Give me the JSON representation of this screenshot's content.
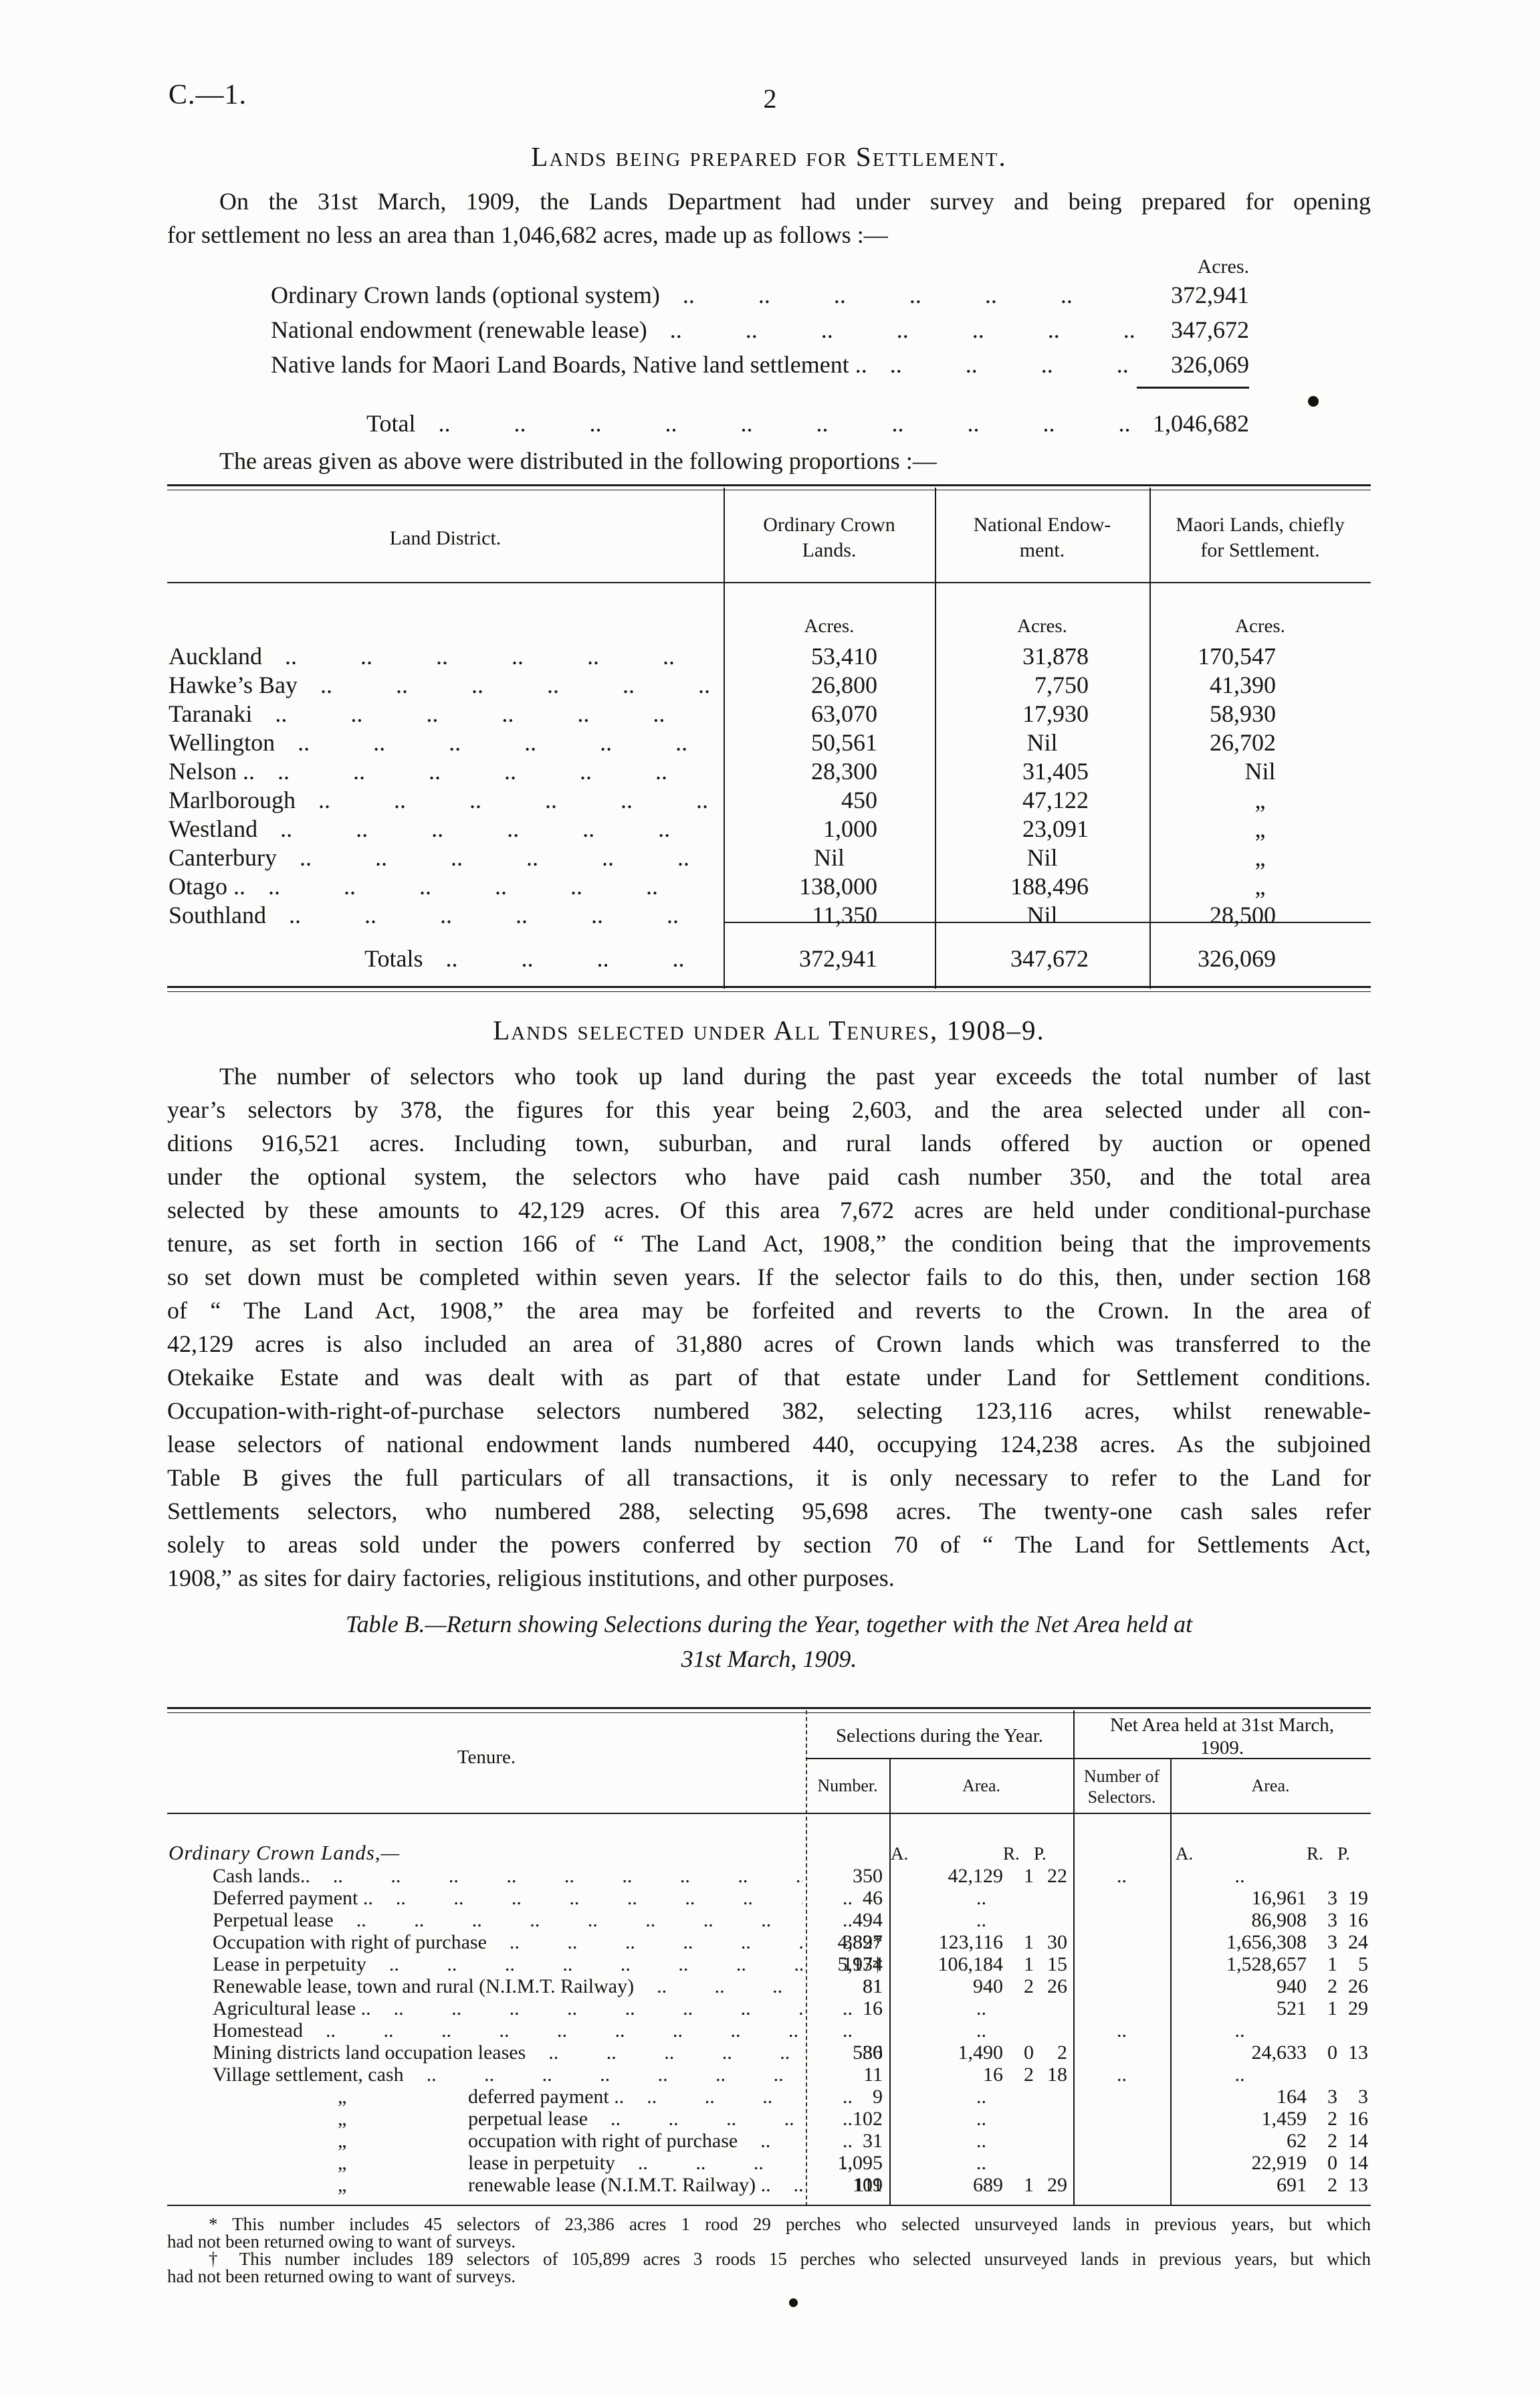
{
  "page": {
    "doc_ref": "C.—1.",
    "page_number": "2"
  },
  "section1": {
    "heading": "Lands being prepared for Settlement.",
    "para_lines": [
      "On the 31st March, 1909, the Lands Department had under survey and being prepared for opening",
      "for settlement no less an area than 1,046,682 acres, made up as follows :—"
    ],
    "acres_label": "Acres.",
    "items": [
      {
        "label": "Ordinary Crown lands (optional system)",
        "value": "372,941"
      },
      {
        "label": "National endowment (renewable lease)",
        "value": "347,672"
      },
      {
        "label": "Native lands for Maori Land Boards, Native land settlement ..",
        "value": "326,069"
      }
    ],
    "total_label": "Total",
    "total_value": "1,046,682",
    "intro_line": "The areas given as above were distributed in the following proportions :—"
  },
  "table1": {
    "col_land_district": "Land District.",
    "col_ocl": [
      "Ordinary Crown",
      "Lands."
    ],
    "col_ne": [
      "National Endow-",
      "ment."
    ],
    "col_maori": [
      "Maori Lands, chiefly",
      "for Settlement."
    ],
    "units": [
      "Acres.",
      "Acres.",
      "Acres."
    ],
    "rows": [
      {
        "district": "Auckland",
        "ocl": "53,410",
        "ne": "31,878",
        "maori": "170,547"
      },
      {
        "district": "Hawke’s Bay",
        "ocl": "26,800",
        "ne": "7,750",
        "maori": "41,390"
      },
      {
        "district": "Taranaki",
        "ocl": "63,070",
        "ne": "17,930",
        "maori": "58,930"
      },
      {
        "district": "Wellington",
        "ocl": "50,561",
        "ne": "Nil",
        "maori": "26,702"
      },
      {
        "district": "Nelson ..",
        "ocl": "28,300",
        "ne": "31,405",
        "maori": "Nil"
      },
      {
        "district": "Marlborough",
        "ocl": "450",
        "ne": "47,122",
        "maori": "„"
      },
      {
        "district": "Westland",
        "ocl": "1,000",
        "ne": "23,091",
        "maori": "„"
      },
      {
        "district": "Canterbury",
        "ocl": "Nil",
        "ne": "Nil",
        "maori": "„"
      },
      {
        "district": "Otago ..",
        "ocl": "138,000",
        "ne": "188,496",
        "maori": "„"
      },
      {
        "district": "Southland",
        "ocl": "11,350",
        "ne": "Nil",
        "maori": "28,500"
      }
    ],
    "totals": {
      "label": "Totals",
      "ocl": "372,941",
      "ne": "347,672",
      "maori": "326,069"
    }
  },
  "section2": {
    "heading": "Lands selected under All Tenures, 1908–9.",
    "para_lines": [
      "The number of selectors who took up land during the past year exceeds the total number of last",
      "year’s selectors by 378, the figures for this year being 2,603, and the area selected under all con-",
      "ditions 916,521 acres.  Including town, suburban, and rural lands offered by auction or opened",
      "under the optional system, the selectors who have paid cash number 350, and the total area",
      "selected by these amounts to 42,129 acres.  Of this area 7,672 acres are held under conditional-purchase",
      "tenure, as set forth in section 166 of “ The Land Act, 1908,” the condition being that the improvements",
      "so set down must be completed within seven years.  If the selector fails to do this, then, under section 168",
      "of “ The Land Act, 1908,” the area may be forfeited and reverts to the Crown.  In the area of",
      "42,129 acres is also included an area of 31,880 acres of Crown lands which was transferred to the",
      "Otekaike Estate and was dealt with as part of that estate under Land for Settlement conditions.",
      "Occupation-with-right-of-purchase selectors numbered 382, selecting 123,116 acres, whilst renewable-",
      "lease selectors of national endowment lands numbered 440, occupying 124,238 acres.  As the subjoined",
      "Table B gives the full particulars of all transactions, it is only necessary to refer to the Land for",
      "Settlements selectors, who numbered 288, selecting 95,698 acres.  The twenty-one cash sales refer",
      "solely to areas sold under the powers conferred by section 70 of “ The Land for Settlements Act,",
      "1908,” as sites for dairy factories, religious institutions, and other purposes."
    ]
  },
  "tableB": {
    "title_lines": [
      "Table B.—Return showing Selections during the Year, together with the Net Area held at",
      "31st March, 1909."
    ],
    "headers": {
      "tenure": "Tenure.",
      "selections_group": "Selections during the Year.",
      "net_group_lines": [
        "Net Area held at 31st March,",
        "1909."
      ],
      "number": "Number.",
      "area": "Area.",
      "num_selectors_lines": [
        "Number of",
        "Selectors."
      ],
      "area2": "Area."
    },
    "units": {
      "a": "A.",
      "r": "R.",
      "p": "P."
    },
    "section_row": "Ordinary Crown Lands,—",
    "rows": [
      {
        "label": "Cash lands..",
        "ditto": false,
        "num": "350",
        "a": "42,129",
        "r": "1",
        "p": "22",
        "ns": "..",
        "na": "..",
        "nr": "",
        "np": ""
      },
      {
        "label": "Deferred payment ..",
        "ditto": false,
        "num": "..",
        "a": "..",
        "r": "",
        "p": "",
        "ns": "46",
        "na": "16,961",
        "nr": "3",
        "np": "19"
      },
      {
        "label": "Perpetual lease",
        "ditto": false,
        "num": "..",
        "a": "..",
        "r": "",
        "p": "",
        "ns": "494",
        "na": "86,908",
        "nr": "3",
        "np": "16"
      },
      {
        "label": "Occupation with right of purchase",
        "ditto": false,
        "num": "382*",
        "a": "123,116",
        "r": "1",
        "p": "30",
        "ns": "4,897",
        "na": "1,656,308",
        "nr": "3",
        "np": "24"
      },
      {
        "label": "Lease in perpetuity",
        "ditto": false,
        "num": "193†",
        "a": "106,184",
        "r": "1",
        "p": "15",
        "ns": "5,174",
        "na": "1,528,657",
        "nr": "1",
        "np": "5"
      },
      {
        "label": "Renewable lease, town and rural (N.I.M.T. Railway)",
        "ditto": false,
        "num": "81",
        "a": "940",
        "r": "2",
        "p": "26",
        "ns": "81",
        "na": "940",
        "nr": "2",
        "np": "26"
      },
      {
        "label": "Agricultural lease ..",
        "ditto": false,
        "num": "..",
        "a": "..",
        "r": "",
        "p": "",
        "ns": "16",
        "na": "521",
        "nr": "1",
        "np": "29"
      },
      {
        "label": "Homestead",
        "ditto": false,
        "num": "..",
        "a": "..",
        "r": "",
        "p": "",
        "ns": "..",
        "na": "..",
        "nr": "",
        "np": ""
      },
      {
        "label": "Mining districts land occupation leases",
        "ditto": false,
        "num": "36",
        "a": "1,490",
        "r": "0",
        "p": "2",
        "ns": "580",
        "na": "24,633",
        "nr": "0",
        "np": "13"
      },
      {
        "label": "Village settlement, cash",
        "ditto": false,
        "num": "11",
        "a": "16",
        "r": "2",
        "p": "18",
        "ns": "..",
        "na": "..",
        "nr": "",
        "np": ""
      },
      {
        "label": "deferred payment ..",
        "ditto": true,
        "num": "..",
        "a": "..",
        "r": "",
        "p": "",
        "ns": "9",
        "na": "164",
        "nr": "3",
        "np": "3"
      },
      {
        "label": "perpetual lease",
        "ditto": true,
        "num": "..",
        "a": "..",
        "r": "",
        "p": "",
        "ns": "102",
        "na": "1,459",
        "nr": "2",
        "np": "16"
      },
      {
        "label": "occupation with right of purchase",
        "ditto": true,
        "num": "..",
        "a": "..",
        "r": "",
        "p": "",
        "ns": "31",
        "na": "62",
        "nr": "2",
        "np": "14"
      },
      {
        "label": "lease in perpetuity",
        "ditto": true,
        "num": "..",
        "a": "..",
        "r": "",
        "p": "",
        "ns": "1,095",
        "na": "22,919",
        "nr": "0",
        "np": "14"
      },
      {
        "label": "renewable lease (N.I.M.T. Railway) ..",
        "ditto": true,
        "num": "109",
        "a": "689",
        "r": "1",
        "p": "29",
        "ns": "111",
        "na": "691",
        "nr": "2",
        "np": "13"
      }
    ]
  },
  "footnotes": {
    "fn1_lines": [
      "* This number includes 45 selectors of 23,386 acres 1 rood 29 perches who selected unsurveyed lands in previous years, but which",
      "had not been returned owing to want of surveys."
    ],
    "fn2_lines": [
      "† This number includes 189 selectors of 105,899 acres 3 roods 15 perches who selected unsurveyed lands in previous years, but which",
      "had not been returned owing to want of surveys."
    ]
  },
  "misc": {
    "leader_dots": ".. .. .. .. .. .. .. .. .. .. .. .. .. .. .. ..",
    "ditto_mark": "„",
    "ink_color": "#171513",
    "paper_color": "#fcfcfa"
  }
}
